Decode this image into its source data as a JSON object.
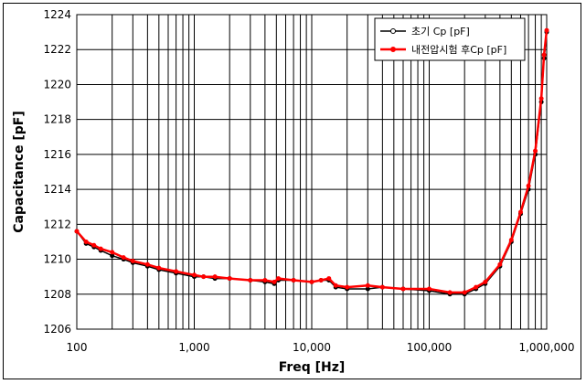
{
  "chart_data": {
    "type": "line",
    "xlabel": "Freq [Hz]",
    "ylabel": "Capacitance [pF]",
    "x_scale": "log",
    "xlim": [
      100,
      1000000
    ],
    "ylim": [
      1206,
      1224
    ],
    "x_ticks": [
      100,
      1000,
      10000,
      100000,
      1000000
    ],
    "x_tick_labels": [
      "100",
      "1,000",
      "10,000",
      "100,000",
      "1,000,000"
    ],
    "y_ticks": [
      1206,
      1208,
      1210,
      1212,
      1214,
      1216,
      1218,
      1220,
      1222,
      1224
    ],
    "y_tick_labels": [
      "1206",
      "1208",
      "1210",
      "1212",
      "1214",
      "1216",
      "1218",
      "1220",
      "1222",
      "1224"
    ],
    "grid": true,
    "legend_position": "top-right",
    "series": [
      {
        "name": "초기 Cp [pF]",
        "color": "#000000",
        "marker": "circle",
        "points": [
          [
            100,
            1211.6
          ],
          [
            120,
            1210.9
          ],
          [
            140,
            1210.7
          ],
          [
            160,
            1210.5
          ],
          [
            200,
            1210.2
          ],
          [
            250,
            1210.0
          ],
          [
            300,
            1209.8
          ],
          [
            400,
            1209.6
          ],
          [
            500,
            1209.4
          ],
          [
            700,
            1209.2
          ],
          [
            1000,
            1209.0
          ],
          [
            1200,
            1209.0
          ],
          [
            1500,
            1208.9
          ],
          [
            2000,
            1208.9
          ],
          [
            3000,
            1208.8
          ],
          [
            4000,
            1208.7
          ],
          [
            4800,
            1208.6
          ],
          [
            5200,
            1208.8
          ],
          [
            7000,
            1208.8
          ],
          [
            10000,
            1208.7
          ],
          [
            12000,
            1208.8
          ],
          [
            14000,
            1208.8
          ],
          [
            16000,
            1208.4
          ],
          [
            20000,
            1208.3
          ],
          [
            30000,
            1208.3
          ],
          [
            40000,
            1208.4
          ],
          [
            60000,
            1208.3
          ],
          [
            100000,
            1208.2
          ],
          [
            150000,
            1208.0
          ],
          [
            200000,
            1208.0
          ],
          [
            250000,
            1208.3
          ],
          [
            300000,
            1208.6
          ],
          [
            400000,
            1209.6
          ],
          [
            500000,
            1211.0
          ],
          [
            600000,
            1212.6
          ],
          [
            700000,
            1214.0
          ],
          [
            800000,
            1216.0
          ],
          [
            900000,
            1219.0
          ],
          [
            950000,
            1221.5
          ],
          [
            1000000,
            1223.0
          ]
        ]
      },
      {
        "name": "내전압시험 후Cp [pF]",
        "color": "#ff0000",
        "marker": "circle",
        "points": [
          [
            100,
            1211.6
          ],
          [
            120,
            1211.0
          ],
          [
            140,
            1210.8
          ],
          [
            160,
            1210.6
          ],
          [
            200,
            1210.4
          ],
          [
            250,
            1210.1
          ],
          [
            300,
            1209.9
          ],
          [
            400,
            1209.7
          ],
          [
            500,
            1209.5
          ],
          [
            700,
            1209.3
          ],
          [
            1000,
            1209.1
          ],
          [
            1200,
            1209.0
          ],
          [
            1500,
            1209.0
          ],
          [
            2000,
            1208.9
          ],
          [
            3000,
            1208.8
          ],
          [
            4000,
            1208.8
          ],
          [
            4800,
            1208.7
          ],
          [
            5200,
            1208.9
          ],
          [
            7000,
            1208.8
          ],
          [
            10000,
            1208.7
          ],
          [
            12000,
            1208.8
          ],
          [
            14000,
            1208.9
          ],
          [
            16000,
            1208.5
          ],
          [
            20000,
            1208.4
          ],
          [
            30000,
            1208.5
          ],
          [
            40000,
            1208.4
          ],
          [
            60000,
            1208.3
          ],
          [
            100000,
            1208.3
          ],
          [
            150000,
            1208.1
          ],
          [
            200000,
            1208.1
          ],
          [
            250000,
            1208.4
          ],
          [
            300000,
            1208.7
          ],
          [
            400000,
            1209.7
          ],
          [
            500000,
            1211.1
          ],
          [
            600000,
            1212.7
          ],
          [
            700000,
            1214.2
          ],
          [
            800000,
            1216.2
          ],
          [
            900000,
            1219.2
          ],
          [
            950000,
            1221.7
          ],
          [
            1000000,
            1223.1
          ]
        ]
      }
    ]
  }
}
